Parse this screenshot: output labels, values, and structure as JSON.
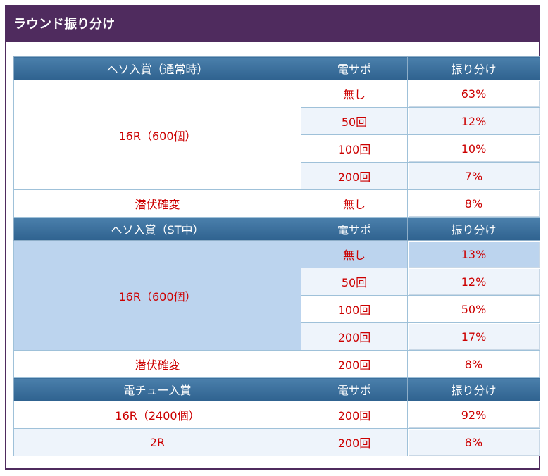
{
  "title": "ラウンド振り分け",
  "sections": [
    {
      "header": [
        "ヘソ入賞（通常時）",
        "電サポ",
        "振り分け"
      ],
      "main_label": "16R（600個）",
      "main_rows": [
        {
          "support": "無し",
          "rate": "63%"
        },
        {
          "support": "50回",
          "rate": "12%"
        },
        {
          "support": "100回",
          "rate": "10%"
        },
        {
          "support": "200回",
          "rate": "7%"
        }
      ],
      "extra": {
        "label": "潜伏確変",
        "support": "無し",
        "rate": "8%"
      }
    },
    {
      "header": [
        "ヘソ入賞（ST中）",
        "電サポ",
        "振り分け"
      ],
      "main_label": "16R（600個）",
      "main_rows": [
        {
          "support": "無し",
          "rate": "13%"
        },
        {
          "support": "50回",
          "rate": "12%"
        },
        {
          "support": "100回",
          "rate": "50%"
        },
        {
          "support": "200回",
          "rate": "17%"
        }
      ],
      "extra": {
        "label": "潜伏確変",
        "support": "200回",
        "rate": "8%"
      }
    },
    {
      "header": [
        "電チュー入賞",
        "電サポ",
        "振り分け"
      ],
      "rows": [
        {
          "label": "16R（2400個）",
          "support": "200回",
          "rate": "92%"
        },
        {
          "label": "2R",
          "support": "200回",
          "rate": "8%"
        }
      ]
    }
  ]
}
